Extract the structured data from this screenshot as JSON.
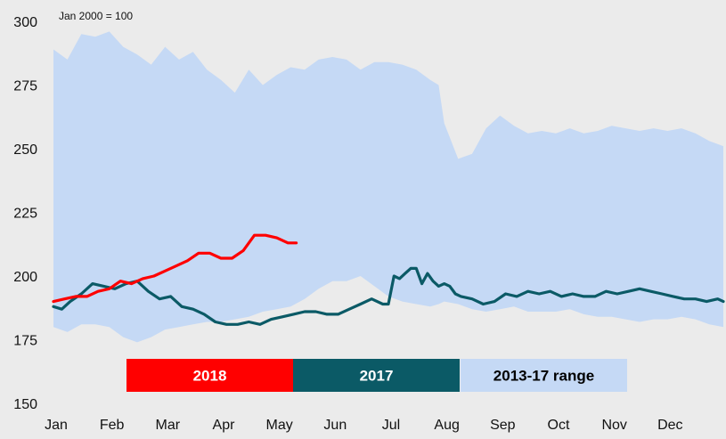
{
  "chart_data": {
    "type": "line",
    "title": "",
    "unit_label": "Jan 2000 = 100",
    "xlabel": "",
    "ylabel": "",
    "ylim": [
      150,
      300
    ],
    "y_ticks": [
      150,
      175,
      200,
      225,
      250,
      275,
      300
    ],
    "x_ticks": [
      "Jan",
      "Feb",
      "Mar",
      "Apr",
      "May",
      "Jun",
      "Jul",
      "Aug",
      "Sep",
      "Oct",
      "Nov",
      "Dec"
    ],
    "grid": false,
    "legend_position": "bottom-center",
    "colors": {
      "2018": "#ff0000",
      "2017": "#0b5a66",
      "range": "#c5d9f5",
      "background": "#ebebeb"
    },
    "range": {
      "name": "2013-17 range",
      "x": [
        0.0,
        0.25,
        0.5,
        0.75,
        1.0,
        1.25,
        1.5,
        1.75,
        2.0,
        2.25,
        2.5,
        2.75,
        3.0,
        3.25,
        3.5,
        3.75,
        4.0,
        4.25,
        4.5,
        4.75,
        5.0,
        5.25,
        5.5,
        5.75,
        6.0,
        6.25,
        6.5,
        6.75,
        6.9,
        7.0,
        7.25,
        7.5,
        7.75,
        8.0,
        8.25,
        8.5,
        8.75,
        9.0,
        9.25,
        9.5,
        9.75,
        10.0,
        10.25,
        10.5,
        10.75,
        11.0,
        11.25,
        11.5,
        11.75,
        12.0
      ],
      "upper": [
        289,
        285,
        295,
        294,
        296,
        290,
        287,
        283,
        290,
        285,
        288,
        281,
        277,
        272,
        281,
        275,
        279,
        282,
        281,
        285,
        286,
        285,
        281,
        284,
        284,
        283,
        281,
        277,
        275,
        260,
        246,
        248,
        258,
        263,
        259,
        256,
        257,
        256,
        258,
        256,
        257,
        259,
        258,
        257,
        258,
        257,
        258,
        256,
        253,
        251
      ],
      "lower": [
        180,
        178,
        181,
        181,
        180,
        176,
        174,
        176,
        179,
        180,
        181,
        182,
        182,
        183,
        184,
        186,
        187,
        188,
        191,
        195,
        198,
        198,
        200,
        196,
        192,
        190,
        189,
        188,
        189,
        190,
        189,
        187,
        186,
        187,
        188,
        186,
        186,
        186,
        187,
        185,
        184,
        184,
        183,
        182,
        183,
        183,
        184,
        183,
        181,
        180
      ]
    },
    "series": [
      {
        "name": "2018",
        "x": [
          0.0,
          0.2,
          0.4,
          0.6,
          0.8,
          1.0,
          1.2,
          1.4,
          1.6,
          1.8,
          2.0,
          2.2,
          2.4,
          2.6,
          2.8,
          3.0,
          3.2,
          3.4,
          3.6,
          3.8,
          4.0,
          4.2,
          4.35
        ],
        "values": [
          190,
          191,
          192,
          192,
          194,
          195,
          198,
          197,
          199,
          200,
          202,
          204,
          206,
          209,
          209,
          207,
          207,
          210,
          216,
          216,
          215,
          213,
          213
        ]
      },
      {
        "name": "2017",
        "x": [
          0.0,
          0.15,
          0.3,
          0.5,
          0.7,
          0.9,
          1.1,
          1.3,
          1.5,
          1.7,
          1.9,
          2.1,
          2.3,
          2.5,
          2.7,
          2.9,
          3.1,
          3.3,
          3.5,
          3.7,
          3.9,
          4.1,
          4.3,
          4.5,
          4.7,
          4.9,
          5.1,
          5.3,
          5.5,
          5.7,
          5.9,
          6.0,
          6.1,
          6.2,
          6.3,
          6.4,
          6.5,
          6.6,
          6.7,
          6.8,
          6.9,
          7.0,
          7.1,
          7.2,
          7.3,
          7.5,
          7.7,
          7.9,
          8.1,
          8.3,
          8.5,
          8.7,
          8.9,
          9.1,
          9.3,
          9.5,
          9.7,
          9.9,
          10.1,
          10.3,
          10.5,
          10.7,
          10.9,
          11.1,
          11.3,
          11.5,
          11.7,
          11.9,
          12.0
        ],
        "values": [
          188,
          187,
          190,
          193,
          197,
          196,
          195,
          197,
          198,
          194,
          191,
          192,
          188,
          187,
          185,
          182,
          181,
          181,
          182,
          181,
          183,
          184,
          185,
          186,
          186,
          185,
          185,
          187,
          189,
          191,
          189,
          189,
          200,
          199,
          201,
          203,
          203,
          197,
          201,
          198,
          196,
          197,
          196,
          193,
          192,
          191,
          189,
          190,
          193,
          192,
          194,
          193,
          194,
          192,
          193,
          192,
          192,
          194,
          193,
          194,
          195,
          194,
          193,
          192,
          191,
          191,
          190,
          191,
          190
        ]
      }
    ]
  },
  "legend": {
    "items": [
      {
        "label": "2018",
        "color": "#ff0000",
        "text_color": "#ffffff"
      },
      {
        "label": "2017",
        "color": "#0b5a66",
        "text_color": "#ffffff"
      },
      {
        "label": "2013-17 range",
        "color": "#c5d9f5",
        "text_color": "#000000"
      }
    ]
  }
}
